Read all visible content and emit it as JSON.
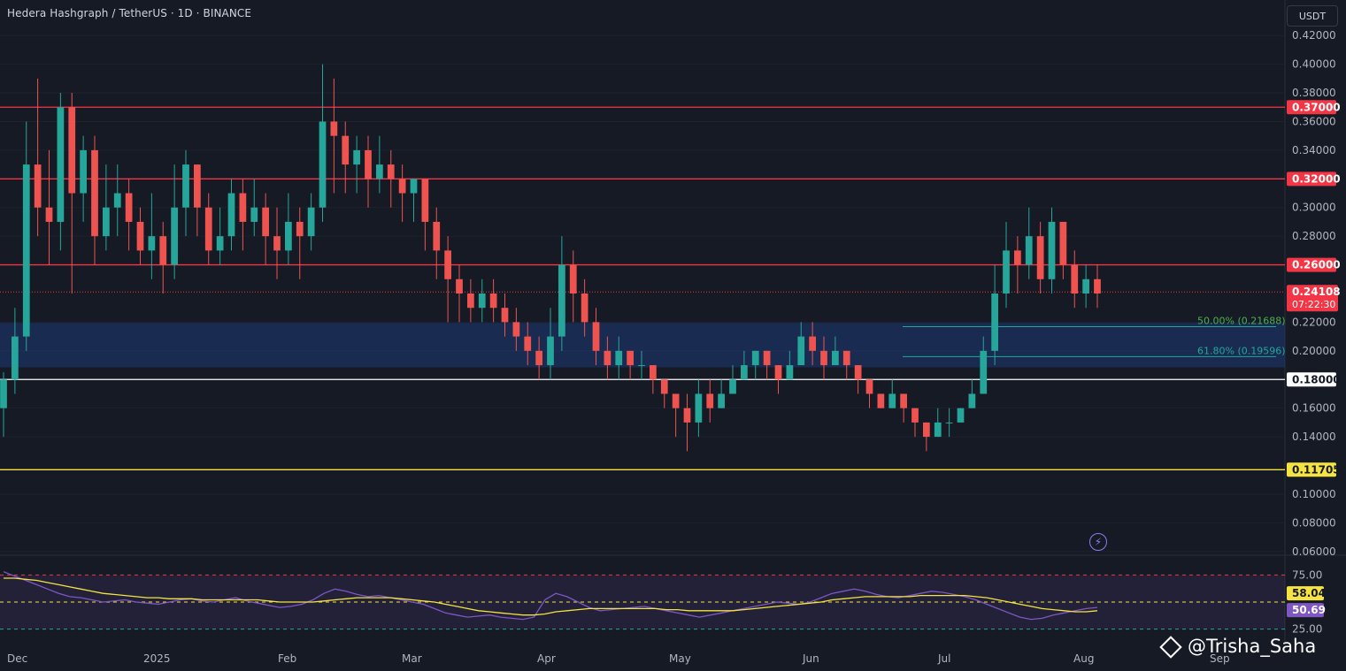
{
  "header": {
    "title": "Hedera Hashgraph / TetherUS · 1D · BINANCE",
    "currency": "USDT"
  },
  "chart_data": {
    "type": "candlestick",
    "symbol": "Hedera Hashgraph / TetherUS",
    "interval": "1D",
    "exchange": "BINANCE",
    "price_axis": {
      "ticks": [
        "0.42000",
        "0.40000",
        "0.38000",
        "0.36000",
        "0.34000",
        "0.30000",
        "0.28000",
        "0.22000",
        "0.20000",
        "0.16000",
        "0.14000",
        "0.10000",
        "0.08000",
        "0.06000"
      ],
      "range": [
        0.05,
        0.43
      ]
    },
    "time_axis": {
      "labels": [
        "Dec",
        "2025",
        "Feb",
        "Mar",
        "Apr",
        "May",
        "Jun",
        "Jul",
        "Aug",
        "Sep"
      ]
    },
    "current_price": {
      "value": "0.24108",
      "countdown": "07:22:30"
    },
    "levels": [
      {
        "value": "0.37000",
        "color": "#f23645",
        "line": "#f23645"
      },
      {
        "value": "0.32000",
        "color": "#f23645",
        "line": "#f23645"
      },
      {
        "value": "0.26000",
        "color": "#f23645",
        "line": "#f23645"
      },
      {
        "value": "0.18000",
        "color": "#ffffff",
        "line": "#ffffff"
      },
      {
        "value": "0.11705",
        "color": "#f5e342",
        "line": "#f5e342"
      }
    ],
    "fib_zone": {
      "top": 0.2195,
      "bottom": 0.1885
    },
    "fib_levels": [
      {
        "label": "50.00% (0.21688)",
        "value": 0.21688
      },
      {
        "label": "61.80% (0.19596)",
        "value": 0.19596
      }
    ],
    "candles": [
      [
        0.16,
        0.18,
        0.14,
        0.185
      ],
      [
        0.18,
        0.21,
        0.17,
        0.23
      ],
      [
        0.21,
        0.33,
        0.2,
        0.36
      ],
      [
        0.33,
        0.3,
        0.28,
        0.39
      ],
      [
        0.3,
        0.29,
        0.26,
        0.34
      ],
      [
        0.29,
        0.37,
        0.27,
        0.38
      ],
      [
        0.37,
        0.31,
        0.24,
        0.38
      ],
      [
        0.31,
        0.34,
        0.29,
        0.35
      ],
      [
        0.34,
        0.28,
        0.26,
        0.35
      ],
      [
        0.28,
        0.3,
        0.27,
        0.33
      ],
      [
        0.3,
        0.31,
        0.28,
        0.33
      ],
      [
        0.31,
        0.29,
        0.27,
        0.32
      ],
      [
        0.29,
        0.27,
        0.26,
        0.3
      ],
      [
        0.27,
        0.28,
        0.25,
        0.31
      ],
      [
        0.28,
        0.26,
        0.24,
        0.29
      ],
      [
        0.26,
        0.3,
        0.25,
        0.33
      ],
      [
        0.3,
        0.33,
        0.28,
        0.34
      ],
      [
        0.33,
        0.3,
        0.28,
        0.33
      ],
      [
        0.3,
        0.27,
        0.26,
        0.31
      ],
      [
        0.27,
        0.28,
        0.26,
        0.3
      ],
      [
        0.28,
        0.31,
        0.27,
        0.32
      ],
      [
        0.31,
        0.29,
        0.27,
        0.32
      ],
      [
        0.29,
        0.3,
        0.28,
        0.32
      ],
      [
        0.3,
        0.28,
        0.26,
        0.31
      ],
      [
        0.28,
        0.27,
        0.25,
        0.3
      ],
      [
        0.27,
        0.29,
        0.26,
        0.31
      ],
      [
        0.29,
        0.28,
        0.25,
        0.3
      ],
      [
        0.28,
        0.3,
        0.27,
        0.31
      ],
      [
        0.3,
        0.36,
        0.29,
        0.4
      ],
      [
        0.36,
        0.35,
        0.31,
        0.39
      ],
      [
        0.35,
        0.33,
        0.31,
        0.36
      ],
      [
        0.33,
        0.34,
        0.31,
        0.35
      ],
      [
        0.34,
        0.32,
        0.3,
        0.35
      ],
      [
        0.32,
        0.33,
        0.31,
        0.35
      ],
      [
        0.33,
        0.32,
        0.3,
        0.34
      ],
      [
        0.32,
        0.31,
        0.29,
        0.33
      ],
      [
        0.31,
        0.32,
        0.29,
        0.32
      ],
      [
        0.32,
        0.29,
        0.27,
        0.32
      ],
      [
        0.29,
        0.27,
        0.25,
        0.3
      ],
      [
        0.27,
        0.25,
        0.22,
        0.28
      ],
      [
        0.25,
        0.24,
        0.22,
        0.26
      ],
      [
        0.24,
        0.23,
        0.22,
        0.25
      ],
      [
        0.23,
        0.24,
        0.22,
        0.25
      ],
      [
        0.24,
        0.23,
        0.22,
        0.25
      ],
      [
        0.23,
        0.22,
        0.21,
        0.24
      ],
      [
        0.22,
        0.21,
        0.2,
        0.23
      ],
      [
        0.21,
        0.2,
        0.19,
        0.22
      ],
      [
        0.2,
        0.19,
        0.18,
        0.21
      ],
      [
        0.19,
        0.21,
        0.18,
        0.23
      ],
      [
        0.21,
        0.26,
        0.2,
        0.28
      ],
      [
        0.26,
        0.24,
        0.22,
        0.27
      ],
      [
        0.24,
        0.22,
        0.21,
        0.25
      ],
      [
        0.22,
        0.2,
        0.19,
        0.23
      ],
      [
        0.2,
        0.19,
        0.18,
        0.21
      ],
      [
        0.19,
        0.2,
        0.18,
        0.21
      ],
      [
        0.2,
        0.19,
        0.18,
        0.2
      ],
      [
        0.19,
        0.19,
        0.18,
        0.2
      ],
      [
        0.19,
        0.18,
        0.17,
        0.19
      ],
      [
        0.18,
        0.17,
        0.16,
        0.18
      ],
      [
        0.17,
        0.16,
        0.14,
        0.17
      ],
      [
        0.16,
        0.15,
        0.13,
        0.17
      ],
      [
        0.15,
        0.17,
        0.14,
        0.18
      ],
      [
        0.17,
        0.16,
        0.15,
        0.18
      ],
      [
        0.16,
        0.17,
        0.16,
        0.18
      ],
      [
        0.17,
        0.18,
        0.17,
        0.19
      ],
      [
        0.18,
        0.19,
        0.18,
        0.2
      ],
      [
        0.19,
        0.2,
        0.18,
        0.2
      ],
      [
        0.2,
        0.19,
        0.18,
        0.2
      ],
      [
        0.19,
        0.18,
        0.17,
        0.19
      ],
      [
        0.18,
        0.19,
        0.18,
        0.2
      ],
      [
        0.19,
        0.21,
        0.19,
        0.22
      ],
      [
        0.21,
        0.2,
        0.19,
        0.22
      ],
      [
        0.2,
        0.19,
        0.18,
        0.21
      ],
      [
        0.19,
        0.2,
        0.19,
        0.21
      ],
      [
        0.2,
        0.19,
        0.18,
        0.2
      ],
      [
        0.19,
        0.18,
        0.17,
        0.19
      ],
      [
        0.18,
        0.17,
        0.16,
        0.18
      ],
      [
        0.17,
        0.16,
        0.16,
        0.17
      ],
      [
        0.16,
        0.17,
        0.16,
        0.18
      ],
      [
        0.17,
        0.16,
        0.15,
        0.17
      ],
      [
        0.16,
        0.15,
        0.14,
        0.16
      ],
      [
        0.15,
        0.14,
        0.13,
        0.15
      ],
      [
        0.14,
        0.15,
        0.14,
        0.16
      ],
      [
        0.15,
        0.15,
        0.14,
        0.16
      ],
      [
        0.15,
        0.16,
        0.15,
        0.16
      ],
      [
        0.16,
        0.17,
        0.16,
        0.18
      ],
      [
        0.17,
        0.2,
        0.17,
        0.21
      ],
      [
        0.2,
        0.24,
        0.19,
        0.26
      ],
      [
        0.24,
        0.27,
        0.23,
        0.29
      ],
      [
        0.27,
        0.26,
        0.24,
        0.28
      ],
      [
        0.26,
        0.28,
        0.25,
        0.3
      ],
      [
        0.28,
        0.25,
        0.24,
        0.29
      ],
      [
        0.25,
        0.29,
        0.24,
        0.3
      ],
      [
        0.29,
        0.26,
        0.25,
        0.29
      ],
      [
        0.26,
        0.24,
        0.23,
        0.27
      ],
      [
        0.24,
        0.25,
        0.23,
        0.26
      ],
      [
        0.25,
        0.24,
        0.23,
        0.26
      ]
    ],
    "rsi": {
      "levels": [
        "75.00",
        "25.00"
      ],
      "rsi_value": "58.04",
      "ma_value": "50.69",
      "rsi_color": "#f5e342",
      "ma_color": "#7e57c2",
      "rsi_series": [
        78,
        74,
        70,
        66,
        62,
        58,
        55,
        54,
        52,
        50,
        51,
        52,
        50,
        49,
        48,
        50,
        52,
        53,
        51,
        50,
        52,
        54,
        51,
        49,
        47,
        45,
        46,
        48,
        52,
        58,
        62,
        60,
        57,
        55,
        56,
        54,
        52,
        50,
        48,
        44,
        40,
        38,
        36,
        37,
        38,
        36,
        35,
        34,
        36,
        52,
        58,
        55,
        50,
        45,
        42,
        43,
        44,
        45,
        46,
        44,
        42,
        40,
        38,
        36,
        38,
        40,
        42,
        44,
        46,
        48,
        50,
        49,
        48,
        50,
        54,
        58,
        60,
        62,
        60,
        57,
        55,
        54,
        56,
        58,
        60,
        59,
        57,
        55,
        52,
        48,
        44,
        40,
        36,
        34,
        35,
        38,
        40,
        42,
        44,
        45
      ],
      "ma_series": [
        72,
        72,
        71,
        70,
        68,
        66,
        64,
        62,
        60,
        58,
        57,
        56,
        55,
        54,
        54,
        53,
        53,
        53,
        52,
        52,
        52,
        52,
        52,
        52,
        51,
        50,
        50,
        50,
        50,
        51,
        52,
        53,
        54,
        54,
        54,
        54,
        53,
        52,
        51,
        50,
        48,
        46,
        44,
        42,
        41,
        40,
        39,
        38,
        38,
        39,
        41,
        42,
        43,
        44,
        44,
        44,
        44,
        44,
        44,
        44,
        43,
        43,
        42,
        42,
        42,
        42,
        42,
        43,
        44,
        45,
        46,
        47,
        48,
        49,
        50,
        52,
        53,
        54,
        55,
        55,
        55,
        55,
        55,
        56,
        56,
        56,
        56,
        56,
        55,
        54,
        52,
        50,
        48,
        46,
        44,
        43,
        42,
        41,
        41,
        42
      ]
    }
  },
  "watermark": "@Trisha_Saha"
}
